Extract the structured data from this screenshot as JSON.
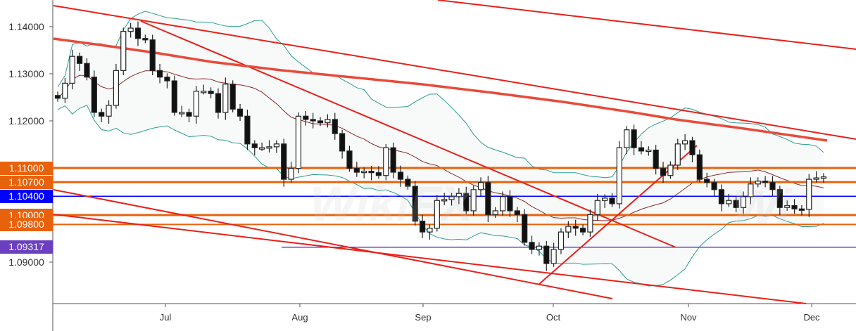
{
  "chart_data": {
    "type": "candlestick",
    "instrument_watermark": "WikiFX",
    "x_tick_labels": [
      "Jul",
      "Aug",
      "Sep",
      "Oct",
      "Nov",
      "Dec"
    ],
    "y_tick_labels": [
      "1.14000",
      "1.13000",
      "1.12000",
      "1.09000"
    ],
    "ylim": [
      1.0815,
      1.1455
    ],
    "close": [
      1.1248,
      1.128,
      1.1337,
      1.1322,
      1.1293,
      1.1218,
      1.121,
      1.1233,
      1.1307,
      1.139,
      1.1397,
      1.1375,
      1.1372,
      1.1307,
      1.1293,
      1.1285,
      1.1218,
      1.1218,
      1.121,
      1.1263,
      1.1263,
      1.1258,
      1.1218,
      1.1278,
      1.1225,
      1.121,
      1.1151,
      1.1143,
      1.1143,
      1.1145,
      1.1151,
      1.1076,
      1.1099,
      1.121,
      1.1203,
      1.12,
      1.1196,
      1.1203,
      1.1173,
      1.1136,
      1.1099,
      1.1091,
      1.1093,
      1.109,
      1.1084,
      1.1143,
      1.1091,
      1.1076,
      1.1061,
      1.0987,
      1.0964,
      1.0972,
      1.1031,
      1.1033,
      1.1039,
      1.1046,
      1.1009,
      1.1054,
      1.1069,
      1.1001,
      1.1009,
      1.1039,
      1.1009,
      1.1001,
      1.0942,
      1.0927,
      1.0934,
      1.0897,
      1.0927,
      1.0964,
      1.0976,
      1.0972,
      1.0964,
      1.1001,
      1.1031,
      1.1036,
      1.1024,
      1.1143,
      1.1181,
      1.1143,
      1.1136,
      1.1138,
      1.1099,
      1.1084,
      1.1106,
      1.1151,
      1.1158,
      1.1128,
      1.1076,
      1.1069,
      1.1054,
      1.1024,
      1.1031,
      1.1016,
      1.1039,
      1.1066,
      1.1072,
      1.1069,
      1.1054,
      1.1016,
      1.102,
      1.1013,
      1.1012,
      1.1076,
      1.1079,
      1.1081
    ],
    "indicators": {
      "bollinger_bands": {
        "period": 20,
        "std": 2,
        "band_color": "#2a9d8f",
        "mid_color": "#8b2a2a"
      }
    },
    "levels": [
      {
        "price": 1.11,
        "label": "1.11000",
        "color": "#e8620c"
      },
      {
        "price": 1.107,
        "label": "1.10700",
        "color": "#e8620c"
      },
      {
        "price": 1.104,
        "label": "1.10400",
        "color": "#0000ff"
      },
      {
        "price": 1.1,
        "label": "1.10000",
        "color": "#e8620c"
      },
      {
        "price": 1.098,
        "label": "1.09800",
        "color": "#e8620c"
      },
      {
        "price": 1.09317,
        "label": "1.09317",
        "color": "#6a3fc0"
      }
    ],
    "trendline_color": "#e8201a",
    "grid": false
  }
}
